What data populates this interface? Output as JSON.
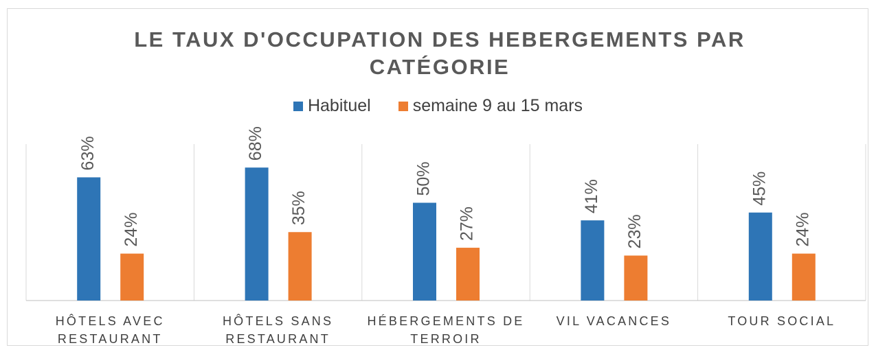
{
  "chart_data": {
    "type": "bar",
    "title": "LE TAUX D'OCCUPATION DES HEBERGEMENTS PAR CATÉGORIE",
    "categories": [
      "HÔTELS AVEC RESTAURANT",
      "HÔTELS SANS RESTAURANT",
      "HÉBERGEMENTS DE TERROIR",
      "VIL VACANCES",
      "TOUR SOCIAL"
    ],
    "series": [
      {
        "name": "Habituel",
        "color": "#2e75b6",
        "values": [
          63,
          68,
          50,
          41,
          45
        ],
        "value_labels": [
          "63%",
          "68%",
          "50%",
          "41%",
          "45%"
        ]
      },
      {
        "name": "semaine 9 au 15 mars",
        "color": "#ed7d31",
        "values": [
          24,
          35,
          27,
          23,
          24
        ],
        "value_labels": [
          "24%",
          "35%",
          "27%",
          "23%",
          "24%"
        ]
      }
    ],
    "ylim": [
      0,
      80
    ],
    "legend": "top"
  }
}
